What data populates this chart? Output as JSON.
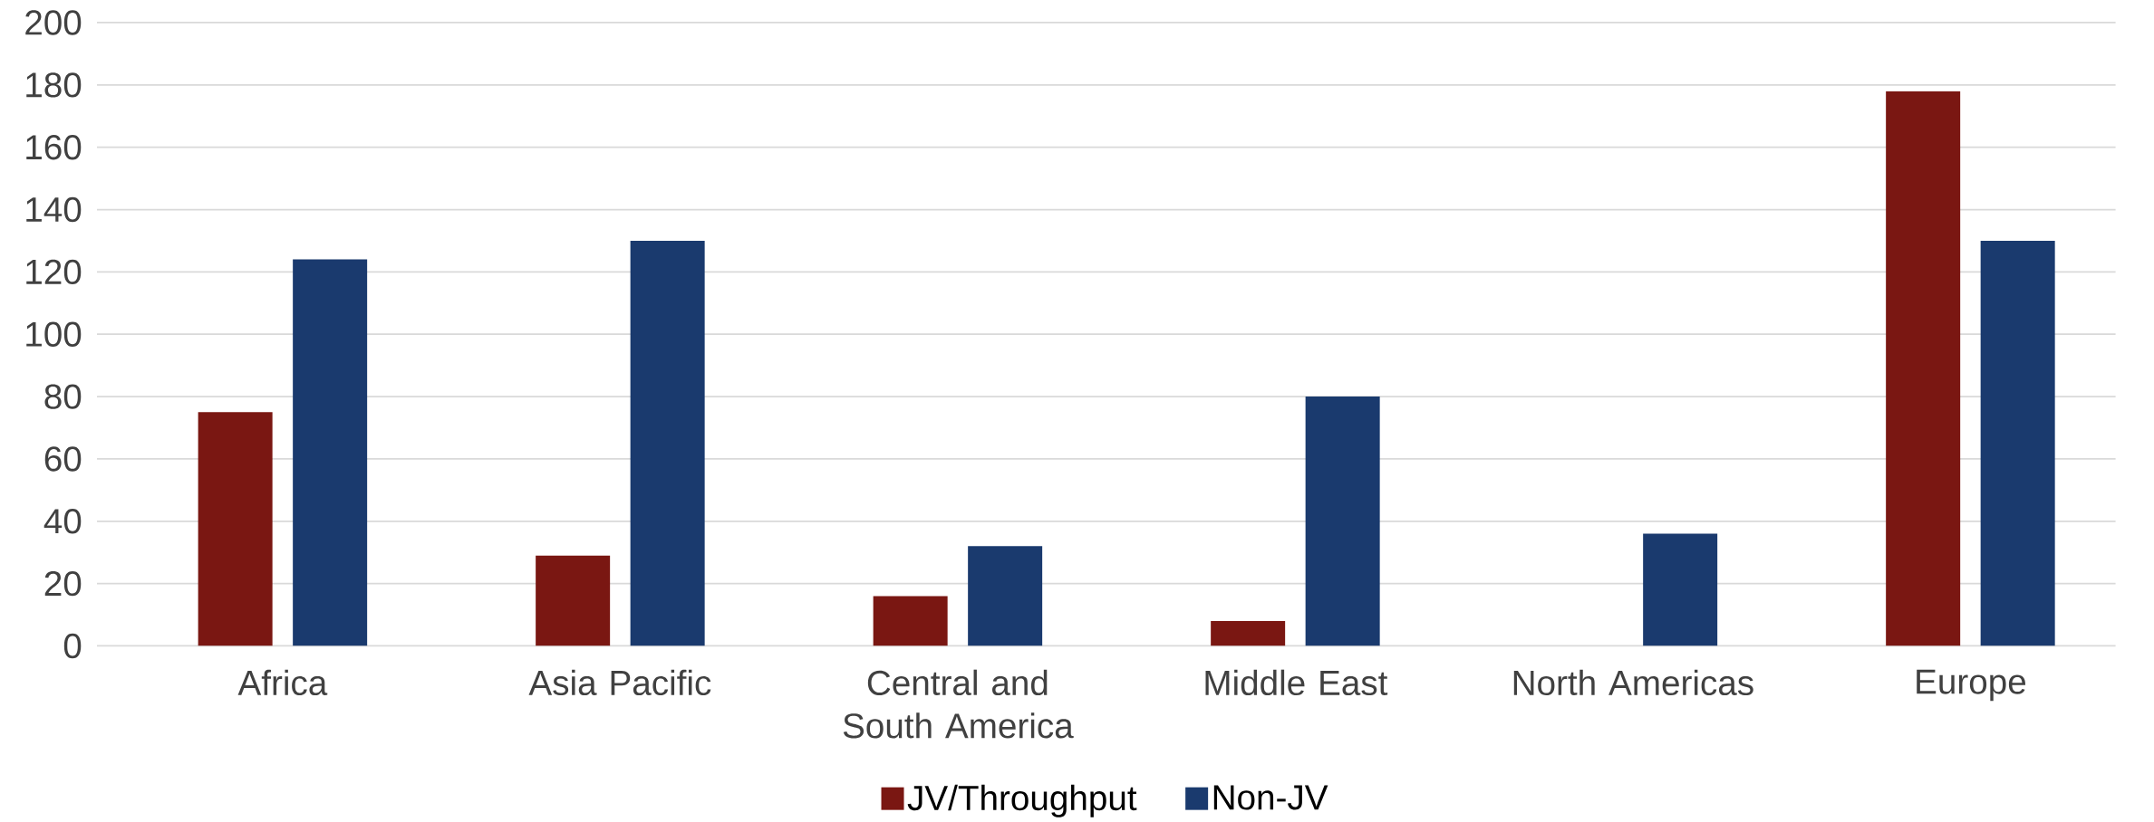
{
  "chart_data": {
    "type": "bar",
    "categories": [
      "Africa",
      "Asia Pacific",
      "Central and South America",
      "Middle East",
      "North Americas",
      "Europe"
    ],
    "series": [
      {
        "name": "JV/Throughput",
        "color": "#7a1712",
        "values": [
          75,
          29,
          16,
          8,
          0,
          178
        ]
      },
      {
        "name": "Non-JV",
        "color": "#1a3a6e",
        "values": [
          124,
          130,
          32,
          80,
          36,
          130
        ]
      }
    ],
    "ylim": [
      0,
      200
    ],
    "yticks": [
      0,
      20,
      40,
      60,
      80,
      100,
      120,
      140,
      160,
      180,
      200
    ],
    "grid": "y",
    "legend": "bottom"
  }
}
